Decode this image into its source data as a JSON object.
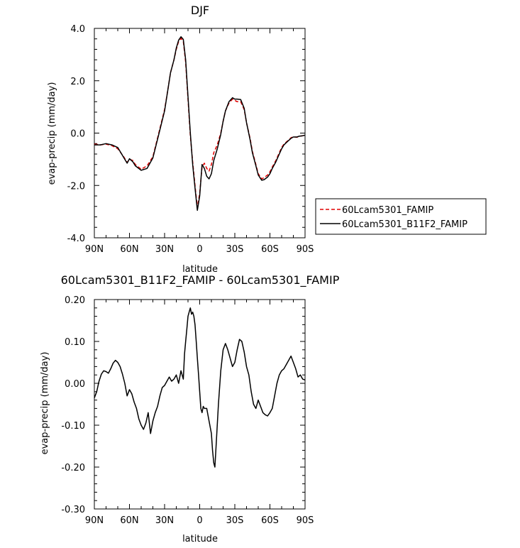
{
  "chart_data": [
    {
      "type": "line",
      "title": "DJF",
      "xlabel": "latitude",
      "ylabel": "evap-precip (mm/day)",
      "x_ticks": [
        "90N",
        "60N",
        "30N",
        "0",
        "30S",
        "60S",
        "90S"
      ],
      "x_tick_values": [
        90,
        60,
        30,
        0,
        -30,
        -60,
        -90
      ],
      "xlim": [
        90,
        -90
      ],
      "y_ticks": [
        "4.0",
        "2.0",
        "0.0",
        "-2.0",
        "-4.0"
      ],
      "y_tick_values": [
        4,
        2,
        0,
        -2,
        -4
      ],
      "ylim": [
        -4,
        4
      ],
      "legend_position": "right",
      "series": [
        {
          "name": "60Lcam5301_FAMIP",
          "color": "#e00000",
          "dash": "dashed",
          "x": [
            90,
            85,
            80,
            75,
            70,
            65,
            62,
            60,
            57,
            55,
            50,
            45,
            40,
            35,
            30,
            27,
            25,
            22,
            20,
            18,
            16,
            14,
            12,
            10,
            8,
            6,
            4,
            2,
            0,
            -2,
            -4,
            -6,
            -8,
            -10,
            -12,
            -15,
            -18,
            -20,
            -22,
            -25,
            -28,
            -30,
            -32,
            -35,
            -38,
            -40,
            -43,
            -45,
            -48,
            -50,
            -53,
            -55,
            -58,
            -60,
            -62,
            -65,
            -68,
            -70,
            -72,
            -75,
            -78,
            -80,
            -83,
            -85,
            -88,
            -90
          ],
          "y": [
            -0.42,
            -0.45,
            -0.42,
            -0.48,
            -0.6,
            -0.9,
            -1.12,
            -1.0,
            -1.05,
            -1.2,
            -1.38,
            -1.25,
            -0.9,
            0.0,
            0.9,
            1.7,
            2.3,
            2.8,
            3.2,
            3.5,
            3.62,
            3.5,
            2.7,
            1.3,
            -0.1,
            -1.1,
            -2.0,
            -2.85,
            -2.3,
            -1.3,
            -1.15,
            -1.35,
            -1.45,
            -1.2,
            -0.75,
            -0.45,
            0.0,
            0.45,
            0.85,
            1.15,
            1.3,
            1.25,
            1.2,
            1.2,
            0.9,
            0.4,
            -0.2,
            -0.7,
            -1.2,
            -1.55,
            -1.75,
            -1.7,
            -1.6,
            -1.48,
            -1.3,
            -1.05,
            -0.75,
            -0.55,
            -0.42,
            -0.3,
            -0.18,
            -0.14,
            -0.16,
            -0.12,
            -0.1,
            -0.08
          ]
        },
        {
          "name": "60Lcam5301_B11F2_FAMIP",
          "color": "#000000",
          "dash": "solid",
          "x": [
            90,
            85,
            80,
            75,
            70,
            65,
            62,
            60,
            57,
            55,
            50,
            45,
            40,
            35,
            30,
            27,
            25,
            22,
            20,
            18,
            16,
            14,
            12,
            10,
            8,
            6,
            4,
            2,
            0,
            -2,
            -4,
            -6,
            -8,
            -10,
            -12,
            -15,
            -18,
            -20,
            -22,
            -25,
            -28,
            -30,
            -32,
            -35,
            -38,
            -40,
            -43,
            -45,
            -48,
            -50,
            -53,
            -55,
            -58,
            -60,
            -62,
            -65,
            -68,
            -70,
            -72,
            -75,
            -78,
            -80,
            -83,
            -85,
            -88,
            -90
          ],
          "y": [
            -0.45,
            -0.45,
            -0.4,
            -0.45,
            -0.55,
            -0.93,
            -1.15,
            -0.98,
            -1.1,
            -1.25,
            -1.42,
            -1.35,
            -0.95,
            -0.05,
            0.85,
            1.7,
            2.3,
            2.8,
            3.25,
            3.55,
            3.68,
            3.58,
            2.8,
            1.4,
            0.0,
            -1.2,
            -2.1,
            -2.95,
            -2.4,
            -1.2,
            -1.35,
            -1.65,
            -1.75,
            -1.55,
            -1.05,
            -0.6,
            -0.05,
            0.45,
            0.85,
            1.2,
            1.35,
            1.3,
            1.3,
            1.28,
            0.95,
            0.4,
            -0.25,
            -0.75,
            -1.25,
            -1.6,
            -1.8,
            -1.78,
            -1.68,
            -1.55,
            -1.35,
            -1.1,
            -0.8,
            -0.6,
            -0.45,
            -0.32,
            -0.2,
            -0.15,
            -0.15,
            -0.12,
            -0.1,
            -0.08
          ]
        }
      ]
    },
    {
      "type": "line",
      "title": "60Lcam5301_B11F2_FAMIP - 60Lcam5301_FAMIP",
      "xlabel": "latitude",
      "ylabel": "evap-precip (mm/day)",
      "x_ticks": [
        "90N",
        "60N",
        "30N",
        "0",
        "30S",
        "60S",
        "90S"
      ],
      "x_tick_values": [
        90,
        60,
        30,
        0,
        -30,
        -60,
        -90
      ],
      "xlim": [
        90,
        -90
      ],
      "y_ticks": [
        "0.20",
        "0.10",
        "0.00",
        "-0.10",
        "-0.20",
        "-0.30"
      ],
      "y_tick_values": [
        0.2,
        0.1,
        0.0,
        -0.1,
        -0.2,
        -0.3
      ],
      "ylim": [
        -0.3,
        0.2
      ],
      "series": [
        {
          "color": "#000000",
          "dash": "solid",
          "x": [
            90,
            88,
            86,
            84,
            82,
            80,
            78,
            76,
            74,
            72,
            70,
            68,
            66,
            64,
            62,
            60,
            58,
            56,
            54,
            52,
            50,
            48,
            46,
            44,
            42,
            40,
            38,
            36,
            34,
            32,
            30,
            28,
            26,
            24,
            22,
            20,
            18,
            16,
            14,
            13,
            12,
            11,
            10,
            9,
            8,
            7,
            6,
            5,
            4,
            3,
            2,
            1,
            0,
            -1,
            -2,
            -3,
            -4,
            -6,
            -8,
            -10,
            -11,
            -12,
            -13,
            -14,
            -16,
            -18,
            -20,
            -22,
            -24,
            -26,
            -28,
            -30,
            -32,
            -34,
            -36,
            -38,
            -40,
            -42,
            -44,
            -46,
            -48,
            -50,
            -52,
            -54,
            -56,
            -58,
            -60,
            -62,
            -64,
            -66,
            -68,
            -70,
            -72,
            -74,
            -76,
            -78,
            -80,
            -82,
            -84,
            -86,
            -88,
            -90
          ],
          "y": [
            -0.035,
            -0.02,
            0.005,
            0.022,
            0.03,
            0.028,
            0.024,
            0.035,
            0.048,
            0.055,
            0.05,
            0.04,
            0.022,
            0.0,
            -0.03,
            -0.015,
            -0.025,
            -0.045,
            -0.06,
            -0.085,
            -0.1,
            -0.11,
            -0.095,
            -0.07,
            -0.12,
            -0.09,
            -0.07,
            -0.055,
            -0.03,
            -0.01,
            -0.005,
            0.005,
            0.015,
            0.005,
            0.01,
            0.02,
            0.0,
            0.03,
            0.01,
            0.07,
            0.1,
            0.13,
            0.16,
            0.17,
            0.18,
            0.165,
            0.17,
            0.16,
            0.14,
            0.1,
            0.06,
            0.02,
            -0.02,
            -0.06,
            -0.07,
            -0.055,
            -0.06,
            -0.06,
            -0.09,
            -0.12,
            -0.16,
            -0.19,
            -0.2,
            -0.15,
            -0.05,
            0.03,
            0.08,
            0.095,
            0.08,
            0.06,
            0.04,
            0.05,
            0.08,
            0.105,
            0.1,
            0.075,
            0.04,
            0.02,
            -0.02,
            -0.05,
            -0.06,
            -0.04,
            -0.055,
            -0.07,
            -0.075,
            -0.078,
            -0.07,
            -0.06,
            -0.03,
            0.0,
            0.02,
            0.03,
            0.035,
            0.045,
            0.055,
            0.065,
            0.05,
            0.035,
            0.015,
            0.02,
            0.01,
            0.008
          ]
        }
      ]
    }
  ]
}
